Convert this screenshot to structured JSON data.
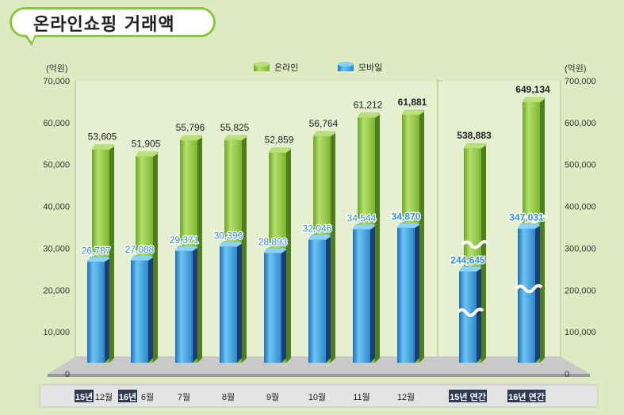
{
  "title": "온라인쇼핑 거래액",
  "colors": {
    "online": "#8cc63f",
    "mobile": "#3fa0e0",
    "background": "#dfeac2"
  },
  "chart_data": {
    "type": "bar",
    "title": "온라인쇼핑 거래액",
    "legend": {
      "placement": "top-center",
      "entries": [
        "온라인",
        "모바일"
      ]
    },
    "left_axis": {
      "unit_label": "(억원)",
      "ylim": [
        0,
        70000
      ],
      "ticks": [
        "0",
        "10,000",
        "20,000",
        "30,000",
        "40,000",
        "50,000",
        "60,000",
        "70,000"
      ]
    },
    "right_axis": {
      "unit_label": "(억원)",
      "ylim": [
        0,
        700000
      ],
      "ticks": [
        "0",
        "100,000",
        "200,000",
        "300,000",
        "400,000",
        "500,000",
        "600,000",
        "700,000"
      ]
    },
    "categories": [
      {
        "year": "15년",
        "month": "12월"
      },
      {
        "year": "16년",
        "month": "6월"
      },
      {
        "year": "",
        "month": "7월"
      },
      {
        "year": "",
        "month": "8월"
      },
      {
        "year": "",
        "month": "9월"
      },
      {
        "year": "",
        "month": "10월"
      },
      {
        "year": "",
        "month": "11월"
      },
      {
        "year": "",
        "month": "12월"
      },
      {
        "year": "15년 연간",
        "month": ""
      },
      {
        "year": "16년 연간",
        "month": ""
      }
    ],
    "axis_of_category": [
      "left",
      "left",
      "left",
      "left",
      "left",
      "left",
      "left",
      "left",
      "right",
      "right"
    ],
    "broken_bars": [
      8,
      9
    ],
    "highlighted": [
      7,
      8,
      9
    ],
    "series": [
      {
        "name": "온라인",
        "values": [
          53605,
          51905,
          55796,
          55825,
          52859,
          56764,
          61212,
          61881,
          538883,
          649134
        ],
        "labels": [
          "53,605",
          "51,905",
          "55,796",
          "55,825",
          "52,859",
          "56,764",
          "61,212",
          "61,881",
          "538,883",
          "649,134"
        ]
      },
      {
        "name": "모바일",
        "values": [
          26787,
          27088,
          29371,
          30396,
          28893,
          32046,
          34544,
          34870,
          244645,
          347031
        ],
        "labels": [
          "26,787",
          "27,088",
          "29,371",
          "30,396",
          "28,893",
          "32,046",
          "34,544",
          "34,870",
          "244,645",
          "347,031"
        ]
      }
    ]
  }
}
